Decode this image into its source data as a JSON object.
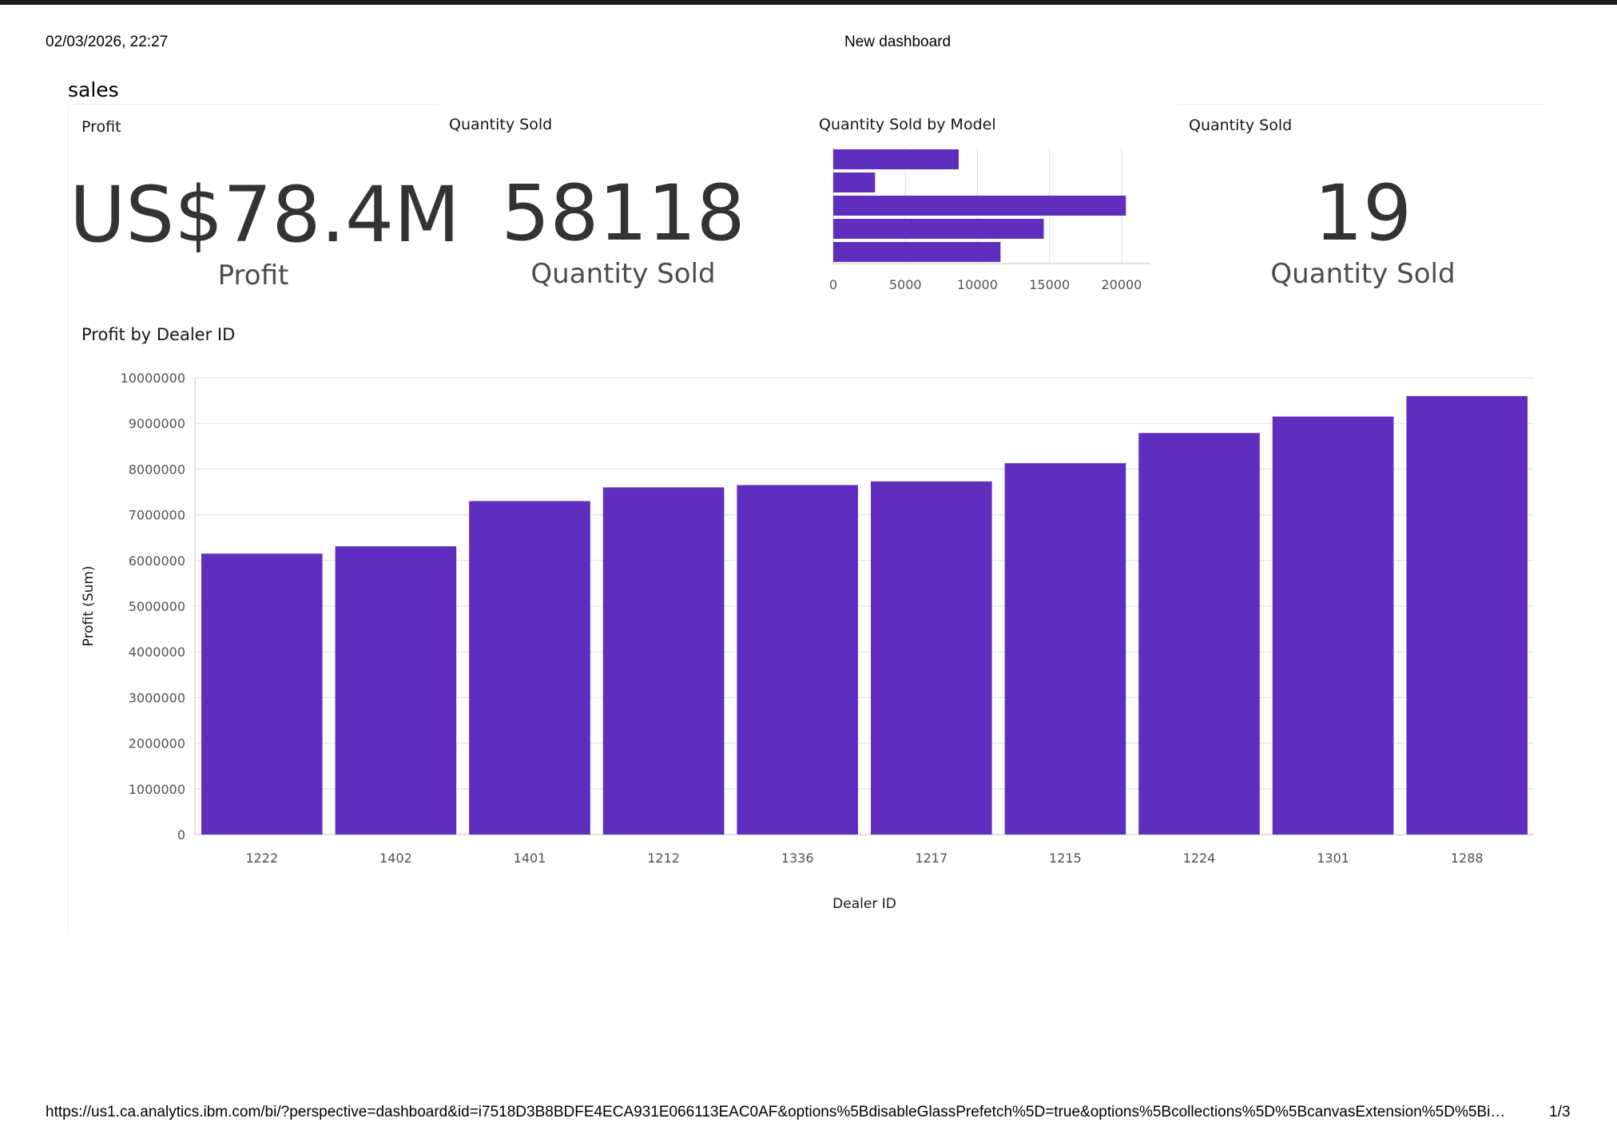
{
  "print_header": {
    "datetime": "02/03/2026, 22:27",
    "dashboard_title": "New dashboard"
  },
  "tab": {
    "title": "sales"
  },
  "kpis": [
    {
      "label": "Profit",
      "value": "US$78.4M",
      "caption": "Profit"
    },
    {
      "label": "Quantity Sold",
      "value": "58118",
      "caption": "Quantity Sold"
    },
    {
      "label": "Quantity Sold",
      "value": "19",
      "caption": "Quantity Sold"
    }
  ],
  "chart_data": [
    {
      "type": "bar",
      "orientation": "horizontal",
      "title": "Quantity Sold by Model",
      "categories": [
        "",
        "",
        "",
        "",
        ""
      ],
      "values": [
        8700,
        2900,
        20300,
        14600,
        11600
      ],
      "xlim": [
        0,
        22000
      ],
      "xticks": [
        0,
        5000,
        10000,
        15000,
        20000
      ],
      "grid": true,
      "color": "#5f2ebe"
    },
    {
      "type": "bar",
      "title": "Profit by Dealer ID",
      "xlabel": "Dealer ID",
      "ylabel": "Profit (Sum)",
      "categories": [
        "1222",
        "1402",
        "1401",
        "1212",
        "1336",
        "1217",
        "1215",
        "1224",
        "1301",
        "1288"
      ],
      "values": [
        6150000,
        6310000,
        7300000,
        7600000,
        7650000,
        7730000,
        8130000,
        8790000,
        9150000,
        9600000
      ],
      "ylim": [
        0,
        10000000
      ],
      "yticks": [
        0,
        1000000,
        2000000,
        3000000,
        4000000,
        5000000,
        6000000,
        7000000,
        8000000,
        9000000,
        10000000
      ],
      "grid": true,
      "color": "#5f2ebe"
    }
  ],
  "print_footer": {
    "url": "https://us1.ca.analytics.ibm.com/bi/?perspective=dashboard&id=i7518D3B8BDFE4ECA931E066113EAC0AF&options%5BdisableGlassPrefetch%5D=true&options%5Bcollections%5D%5BcanvasExtension%5D%5Bi…",
    "page": "1/3"
  }
}
